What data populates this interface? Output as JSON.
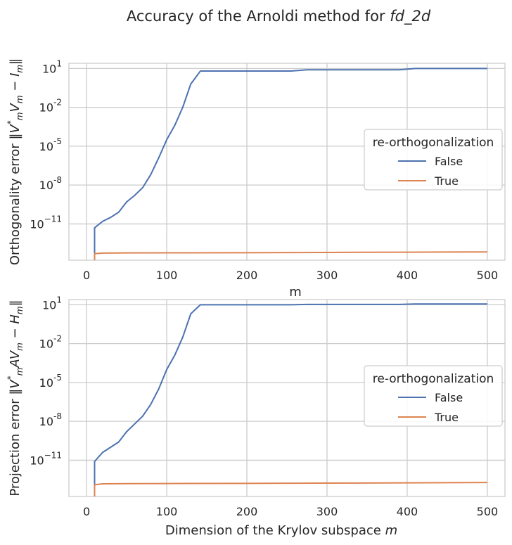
{
  "figure": {
    "title_prefix": "Accuracy of the Arnoldi method for ",
    "title_matrix": "fd_2d"
  },
  "chart_data": [
    {
      "type": "line",
      "xlabel": "m",
      "ylabel": "Orthogonality error ‖V*ₘVₘ − Iₘ‖",
      "ylabel_parts": [
        "Orthogonality error ",
        "‖V",
        "*",
        "m",
        "V",
        "m",
        " − I",
        "m",
        "‖"
      ],
      "yscale": "log",
      "xlim": [
        -22,
        522
      ],
      "ylim_exp": [
        -13.8,
        1.4
      ],
      "xticks": [
        0,
        100,
        200,
        300,
        400,
        500
      ],
      "xtick_labels": [
        "0",
        "100",
        "200",
        "300",
        "400",
        "500"
      ],
      "yticks_exp": [
        1,
        -2,
        -5,
        -8,
        -11
      ],
      "ytick_labels": [
        [
          "10",
          "1"
        ],
        [
          "10",
          "-2"
        ],
        [
          "10",
          "-5"
        ],
        [
          "10",
          "-8"
        ],
        [
          "10",
          "−11"
        ]
      ],
      "grid": true,
      "legend": {
        "title": "re-orthogonalization",
        "placement": "center-right"
      },
      "series": [
        {
          "name": "False",
          "color": "#4c72b0",
          "x": [
            10,
            10,
            20,
            30,
            40,
            50,
            60,
            70,
            80,
            90,
            100,
            110,
            120,
            130,
            142,
            150,
            200,
            255,
            275,
            300,
            350,
            390,
            410,
            450,
            500
          ],
          "log10_y": [
            -13.9,
            -11.3,
            -10.8,
            -10.5,
            -10.1,
            -9.3,
            -8.8,
            -8.2,
            -7.2,
            -5.9,
            -4.5,
            -3.4,
            -2.0,
            -0.2,
            0.8,
            0.8,
            0.8,
            0.8,
            0.9,
            0.9,
            0.9,
            0.9,
            1.0,
            1.0,
            1.0
          ]
        },
        {
          "name": "True",
          "color": "#dd8452",
          "x": [
            10,
            10,
            20,
            50,
            100,
            200,
            300,
            400,
            500
          ],
          "log10_y": [
            -13.9,
            -13.3,
            -13.25,
            -13.24,
            -13.23,
            -13.22,
            -13.2,
            -13.18,
            -13.16
          ]
        }
      ]
    },
    {
      "type": "line",
      "xlabel": "Dimension of the Krylov subspace m",
      "xlabel_parts": [
        "Dimension of the Krylov subspace ",
        "m"
      ],
      "ylabel": "Projection error ‖V*ₘAVₘ − Hₘ‖",
      "ylabel_parts": [
        "Projection error ",
        "‖V",
        "*",
        "m",
        "AV",
        "m",
        " − H",
        "m",
        "‖"
      ],
      "yscale": "log",
      "xlim": [
        -22,
        522
      ],
      "ylim_exp": [
        -13.8,
        1.4
      ],
      "xticks": [
        0,
        100,
        200,
        300,
        400,
        500
      ],
      "xtick_labels": [
        "0",
        "100",
        "200",
        "300",
        "400",
        "500"
      ],
      "yticks_exp": [
        1,
        -2,
        -5,
        -8,
        -11
      ],
      "ytick_labels": [
        [
          "10",
          "1"
        ],
        [
          "10",
          "-2"
        ],
        [
          "10",
          "-5"
        ],
        [
          "10",
          "-8"
        ],
        [
          "10",
          "−11"
        ]
      ],
      "grid": true,
      "legend": {
        "title": "re-orthogonalization",
        "placement": "center-right"
      },
      "series": [
        {
          "name": "False",
          "color": "#4c72b0",
          "x": [
            10,
            10,
            20,
            30,
            40,
            50,
            60,
            70,
            80,
            90,
            100,
            110,
            120,
            130,
            142,
            150,
            200,
            255,
            275,
            300,
            350,
            390,
            410,
            450,
            500
          ],
          "log10_y": [
            -13.9,
            -11.1,
            -10.4,
            -10.0,
            -9.6,
            -8.8,
            -8.2,
            -7.6,
            -6.7,
            -5.5,
            -4.0,
            -2.9,
            -1.5,
            0.3,
            1.0,
            1.0,
            1.0,
            1.0,
            1.03,
            1.03,
            1.03,
            1.03,
            1.06,
            1.06,
            1.06
          ]
        },
        {
          "name": "True",
          "color": "#dd8452",
          "x": [
            10,
            10,
            20,
            50,
            100,
            200,
            300,
            400,
            500
          ],
          "log10_y": [
            -13.9,
            -12.9,
            -12.82,
            -12.81,
            -12.8,
            -12.79,
            -12.77,
            -12.75,
            -12.72
          ]
        }
      ]
    }
  ]
}
